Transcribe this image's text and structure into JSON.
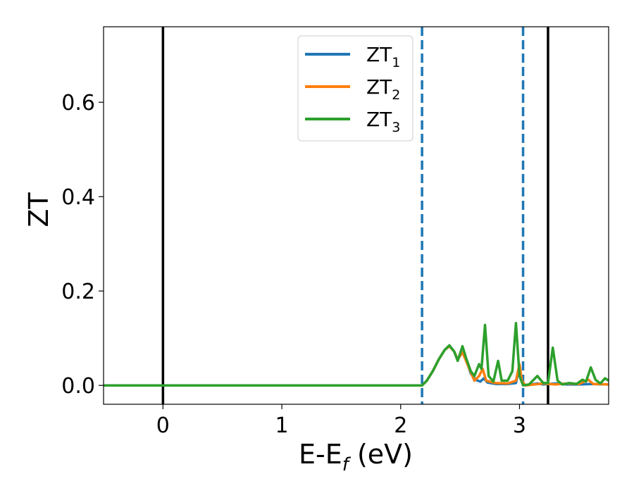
{
  "chart_data": {
    "type": "line",
    "xlabel": {
      "main": "E-E",
      "sub": "f",
      "tail": " (eV)"
    },
    "ylabel": "ZT",
    "xlim": [
      -0.5,
      3.75
    ],
    "ylim": [
      -0.04,
      0.76
    ],
    "xticks": [
      0,
      1,
      2,
      3
    ],
    "xtick_labels": [
      "0",
      "1",
      "2",
      "3"
    ],
    "yticks": [
      0.0,
      0.2,
      0.4,
      0.6
    ],
    "ytick_labels": [
      "0.0",
      "0.2",
      "0.4",
      "0.6"
    ],
    "grid": false,
    "legend_position": "top-center",
    "vlines": [
      {
        "x": 0.0,
        "style": "solid",
        "color": "#000000"
      },
      {
        "x": 3.24,
        "style": "solid",
        "color": "#000000"
      },
      {
        "x": 2.18,
        "style": "dashed",
        "color": "#1f77b4"
      },
      {
        "x": 3.03,
        "style": "dashed",
        "color": "#1f77b4"
      }
    ],
    "series": [
      {
        "name": "ZT",
        "sub": "1",
        "color": "#1f77b4",
        "points": [
          [
            -0.5,
            0
          ],
          [
            2.18,
            0
          ],
          [
            2.22,
            0.01
          ],
          [
            2.27,
            0.03
          ],
          [
            2.32,
            0.055
          ],
          [
            2.37,
            0.075
          ],
          [
            2.41,
            0.083
          ],
          [
            2.45,
            0.072
          ],
          [
            2.48,
            0.055
          ],
          [
            2.52,
            0.07
          ],
          [
            2.55,
            0.055
          ],
          [
            2.59,
            0.025
          ],
          [
            2.63,
            0.012
          ],
          [
            2.67,
            0.008
          ],
          [
            2.7,
            0.015
          ],
          [
            2.73,
            0.006
          ],
          [
            2.8,
            0.003
          ],
          [
            2.9,
            0.003
          ],
          [
            2.97,
            0.005
          ],
          [
            3.0,
            0.042
          ],
          [
            3.02,
            0.008
          ],
          [
            3.05,
            0.0
          ],
          [
            3.1,
            0.002
          ],
          [
            3.15,
            0.004
          ],
          [
            3.2,
            0.002
          ],
          [
            3.3,
            0.004
          ],
          [
            3.4,
            0.002
          ],
          [
            3.5,
            0.002
          ],
          [
            3.6,
            0.003
          ],
          [
            3.75,
            0.002
          ]
        ]
      },
      {
        "name": "ZT",
        "sub": "2",
        "color": "#ff7f0e",
        "points": [
          [
            -0.5,
            0
          ],
          [
            2.18,
            0
          ],
          [
            2.22,
            0.01
          ],
          [
            2.27,
            0.03
          ],
          [
            2.32,
            0.055
          ],
          [
            2.37,
            0.075
          ],
          [
            2.41,
            0.083
          ],
          [
            2.45,
            0.072
          ],
          [
            2.48,
            0.055
          ],
          [
            2.52,
            0.07
          ],
          [
            2.55,
            0.052
          ],
          [
            2.59,
            0.028
          ],
          [
            2.62,
            0.01
          ],
          [
            2.66,
            0.02
          ],
          [
            2.69,
            0.035
          ],
          [
            2.72,
            0.01
          ],
          [
            2.8,
            0.005
          ],
          [
            2.9,
            0.004
          ],
          [
            2.97,
            0.01
          ],
          [
            3.0,
            0.045
          ],
          [
            3.02,
            0.01
          ],
          [
            3.05,
            0.0
          ],
          [
            3.12,
            0.002
          ],
          [
            3.2,
            0.004
          ],
          [
            3.3,
            0.002
          ],
          [
            3.4,
            0.004
          ],
          [
            3.5,
            0.003
          ],
          [
            3.58,
            0.012
          ],
          [
            3.62,
            0.003
          ],
          [
            3.75,
            0.002
          ]
        ]
      },
      {
        "name": "ZT",
        "sub": "3",
        "color": "#2ca02c",
        "points": [
          [
            -0.5,
            0
          ],
          [
            2.18,
            0
          ],
          [
            2.22,
            0.01
          ],
          [
            2.27,
            0.03
          ],
          [
            2.32,
            0.055
          ],
          [
            2.37,
            0.075
          ],
          [
            2.41,
            0.085
          ],
          [
            2.45,
            0.072
          ],
          [
            2.48,
            0.052
          ],
          [
            2.52,
            0.083
          ],
          [
            2.55,
            0.058
          ],
          [
            2.59,
            0.03
          ],
          [
            2.62,
            0.02
          ],
          [
            2.66,
            0.045
          ],
          [
            2.68,
            0.035
          ],
          [
            2.71,
            0.128
          ],
          [
            2.74,
            0.02
          ],
          [
            2.78,
            0.008
          ],
          [
            2.82,
            0.052
          ],
          [
            2.85,
            0.01
          ],
          [
            2.9,
            0.01
          ],
          [
            2.94,
            0.03
          ],
          [
            2.97,
            0.132
          ],
          [
            3.0,
            0.02
          ],
          [
            3.03,
            0.0
          ],
          [
            3.08,
            0.002
          ],
          [
            3.15,
            0.02
          ],
          [
            3.2,
            0.005
          ],
          [
            3.24,
            0.005
          ],
          [
            3.28,
            0.08
          ],
          [
            3.32,
            0.01
          ],
          [
            3.36,
            0.002
          ],
          [
            3.42,
            0.005
          ],
          [
            3.48,
            0.003
          ],
          [
            3.53,
            0.012
          ],
          [
            3.56,
            0.008
          ],
          [
            3.6,
            0.038
          ],
          [
            3.64,
            0.012
          ],
          [
            3.68,
            0.004
          ],
          [
            3.72,
            0.015
          ],
          [
            3.75,
            0.01
          ]
        ]
      }
    ]
  }
}
